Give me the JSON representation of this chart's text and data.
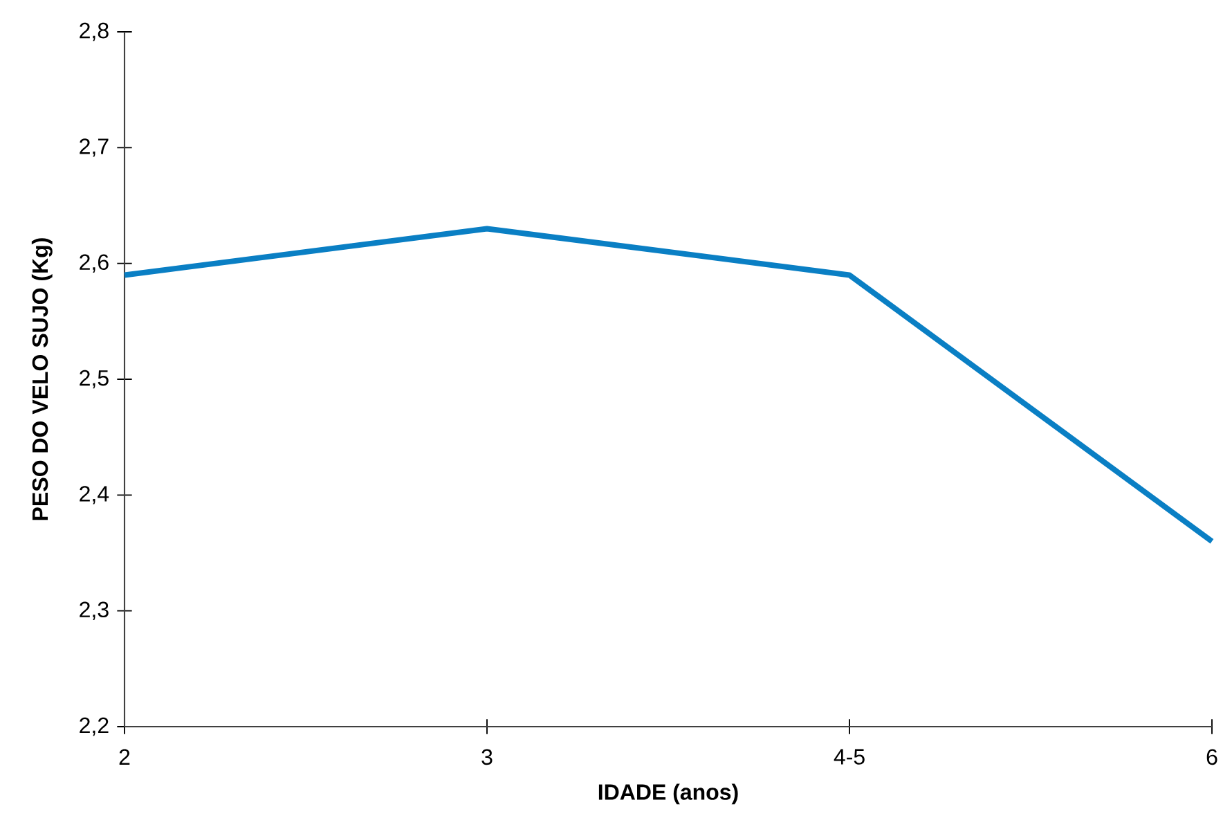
{
  "chart_data": {
    "type": "line",
    "xlabel": "IDADE (anos)",
    "ylabel": "PESO DO VELO SUJO (Kg)",
    "categories": [
      "2",
      "3",
      "4-5",
      "6"
    ],
    "series": [
      {
        "color": "#0a7fc4",
        "values": [
          2.59,
          2.63,
          2.59,
          2.36
        ]
      }
    ],
    "ylim": [
      2.2,
      2.8
    ],
    "yticks": [
      {
        "value": 2.2,
        "label": "2,2"
      },
      {
        "value": 2.3,
        "label": "2,3"
      },
      {
        "value": 2.4,
        "label": "2,4"
      },
      {
        "value": 2.5,
        "label": "2,5"
      },
      {
        "value": 2.6,
        "label": "2,6"
      },
      {
        "value": 2.7,
        "label": "2,7"
      },
      {
        "value": 2.8,
        "label": "2,8"
      }
    ],
    "grid": false,
    "line_style": "solid"
  }
}
